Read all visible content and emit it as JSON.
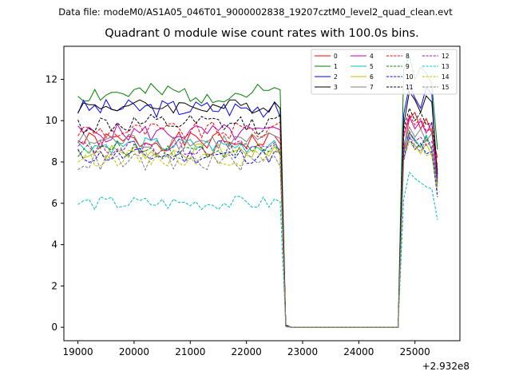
{
  "figure": {
    "suptitle": "Data file: modeM0/AS1A05_046T01_9000002838_19207cztM0_level2_quad_clean.evt",
    "title": "Quadrant 0 module wise count rates with 100.0s bins.",
    "x_offset_label": "+2.932e8"
  },
  "chart_data": {
    "type": "line",
    "title": "Quadrant 0 module wise count rates with 100.0s bins.",
    "xlabel": "",
    "ylabel": "",
    "xlim": [
      18750,
      25800
    ],
    "ylim": [
      -0.65,
      13.6
    ],
    "x_ticks": [
      19000,
      20000,
      21000,
      22000,
      23000,
      24000,
      25000
    ],
    "x_tick_labels": [
      "19000",
      "20000",
      "21000",
      "22000",
      "23000",
      "24000",
      "25000"
    ],
    "y_ticks": [
      0,
      2,
      4,
      6,
      8,
      10,
      12
    ],
    "y_tick_labels": [
      "0",
      "2",
      "4",
      "6",
      "8",
      "10",
      "12"
    ],
    "x_offset": "+2.932e8",
    "legend_position": "upper right",
    "x_start": 19000,
    "bin": 100,
    "gap_start": 22600,
    "gap_end": 24700,
    "x_end": 25500,
    "series": [
      {
        "name": "0",
        "color": "#ff0000",
        "dash": "solid",
        "level": 9.0,
        "amp": 0.45,
        "gap_level": 0.08,
        "post": [
          8.6,
          10.1,
          10.4,
          9.6,
          10.1,
          9.4,
          8.2
        ],
        "seed": 1
      },
      {
        "name": "1",
        "color": "#008000",
        "dash": "solid",
        "level": 11.3,
        "amp": 0.5,
        "gap_level": 0.12,
        "post": [
          12.5,
          13.1,
          12.0,
          12.6,
          12.3,
          11.8,
          8.6
        ],
        "seed": 2
      },
      {
        "name": "2",
        "color": "#0000ff",
        "dash": "solid",
        "level": 10.6,
        "amp": 0.45,
        "gap_level": 0.1,
        "post": [
          10.3,
          11.7,
          11.1,
          10.6,
          11.6,
          11.3,
          7.2
        ],
        "seed": 3
      },
      {
        "name": "3",
        "color": "#000000",
        "dash": "solid",
        "level": 10.7,
        "amp": 0.35,
        "gap_level": 0.08,
        "post": [
          9.8,
          11.4,
          11.0,
          10.4,
          11.2,
          10.9,
          7.4
        ],
        "seed": 4
      },
      {
        "name": "4",
        "color": "#bf00bf",
        "dash": "solid",
        "level": 9.4,
        "amp": 0.45,
        "gap_level": 0.06,
        "post": [
          9.2,
          10.2,
          9.6,
          10.0,
          9.4,
          9.9,
          7.0
        ],
        "seed": 5
      },
      {
        "name": "5",
        "color": "#00bfbf",
        "dash": "solid",
        "level": 8.8,
        "amp": 0.4,
        "gap_level": 0.05,
        "post": [
          8.9,
          9.4,
          9.1,
          8.7,
          9.3,
          8.6,
          6.8
        ],
        "seed": 6
      },
      {
        "name": "6",
        "color": "#bfbf00",
        "dash": "solid",
        "level": 8.5,
        "amp": 0.4,
        "gap_level": 0.04,
        "post": [
          8.6,
          9.0,
          8.8,
          8.4,
          8.9,
          8.3,
          6.6
        ],
        "seed": 7
      },
      {
        "name": "7",
        "color": "#808080",
        "dash": "solid",
        "level": 9.0,
        "amp": 0.45,
        "gap_level": 0.05,
        "post": [
          8.8,
          9.7,
          9.2,
          9.6,
          9.0,
          9.4,
          6.9
        ],
        "seed": 8
      },
      {
        "name": "8",
        "color": "#ff0000",
        "dash": "dashed",
        "level": 9.5,
        "amp": 0.45,
        "gap_level": 0.07,
        "post": [
          9.4,
          10.3,
          9.8,
          10.1,
          9.5,
          9.6,
          7.8
        ],
        "seed": 9
      },
      {
        "name": "9",
        "color": "#008000",
        "dash": "dashed",
        "level": 8.6,
        "amp": 0.4,
        "gap_level": 0.05,
        "post": [
          8.4,
          9.5,
          9.0,
          8.7,
          9.2,
          8.6,
          7.0
        ],
        "seed": 10
      },
      {
        "name": "10",
        "color": "#0000ff",
        "dash": "dashed",
        "level": 8.3,
        "amp": 0.4,
        "gap_level": 0.05,
        "post": [
          8.2,
          9.2,
          8.6,
          8.9,
          8.4,
          8.5,
          6.3
        ],
        "seed": 11
      },
      {
        "name": "11",
        "color": "#000000",
        "dash": "dashed",
        "level": 9.8,
        "amp": 0.5,
        "gap_level": 0.07,
        "post": [
          9.6,
          10.6,
          10.0,
          10.4,
          9.8,
          9.9,
          7.6
        ],
        "seed": 12
      },
      {
        "name": "12",
        "color": "#bf00bf",
        "dash": "dashed",
        "level": 8.7,
        "amp": 0.4,
        "gap_level": 0.05,
        "post": [
          8.5,
          9.4,
          9.0,
          9.2,
          8.8,
          9.0,
          7.1
        ],
        "seed": 13
      },
      {
        "name": "13",
        "color": "#00bfbf",
        "dash": "dashed",
        "level": 6.0,
        "amp": 0.35,
        "gap_level": 0.02,
        "post": [
          6.2,
          7.5,
          7.2,
          7.0,
          6.8,
          6.7,
          5.2
        ],
        "seed": 14
      },
      {
        "name": "14",
        "color": "#bfbf00",
        "dash": "dashed",
        "level": 8.2,
        "amp": 0.4,
        "gap_level": 0.04,
        "post": [
          8.1,
          9.0,
          8.6,
          8.8,
          8.3,
          8.4,
          6.8
        ],
        "seed": 15
      },
      {
        "name": "15",
        "color": "#808080",
        "dash": "dashed",
        "level": 8.0,
        "amp": 0.45,
        "gap_level": 0.04,
        "post": [
          8.0,
          9.3,
          8.8,
          8.5,
          9.1,
          8.7,
          6.5
        ],
        "seed": 16
      }
    ]
  }
}
